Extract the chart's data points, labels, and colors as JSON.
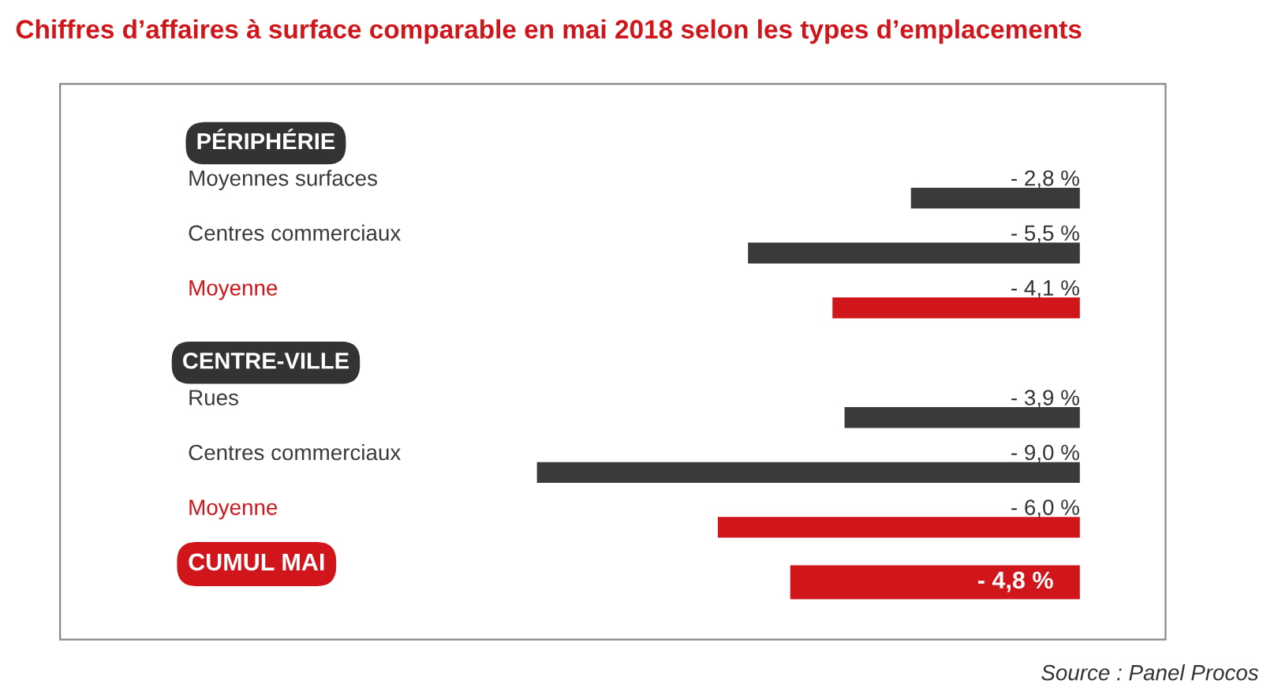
{
  "chart_data": {
    "type": "bar",
    "orientation": "horizontal",
    "title": "Chiffres d’affaires à surface comparable en mai 2018 selon les types d’emplacements",
    "categories": [
      "Moyennes surfaces",
      "Centres commerciaux",
      "Moyenne",
      "Rues",
      "Centres commerciaux",
      "Moyenne",
      "CUMUL MAI"
    ],
    "values": [
      -2.8,
      -5.5,
      -4.1,
      -3.9,
      -9.0,
      -6.0,
      -4.8
    ],
    "colors": [
      "#3a3a3a",
      "#3a3a3a",
      "#d0161b",
      "#3a3a3a",
      "#3a3a3a",
      "#d0161b",
      "#d0161b"
    ],
    "value_labels": [
      "- 2,8 %",
      "- 5,5 %",
      "- 4,1 %",
      "- 3,9 %",
      "- 9,0 %",
      "- 6,0 %",
      "- 4,8 %"
    ],
    "annotations": [
      "PÉRIPHÉRIE",
      "CENTRE-VILLE",
      "Source : Panel Procos"
    ],
    "tick_labels": false
  }
}
